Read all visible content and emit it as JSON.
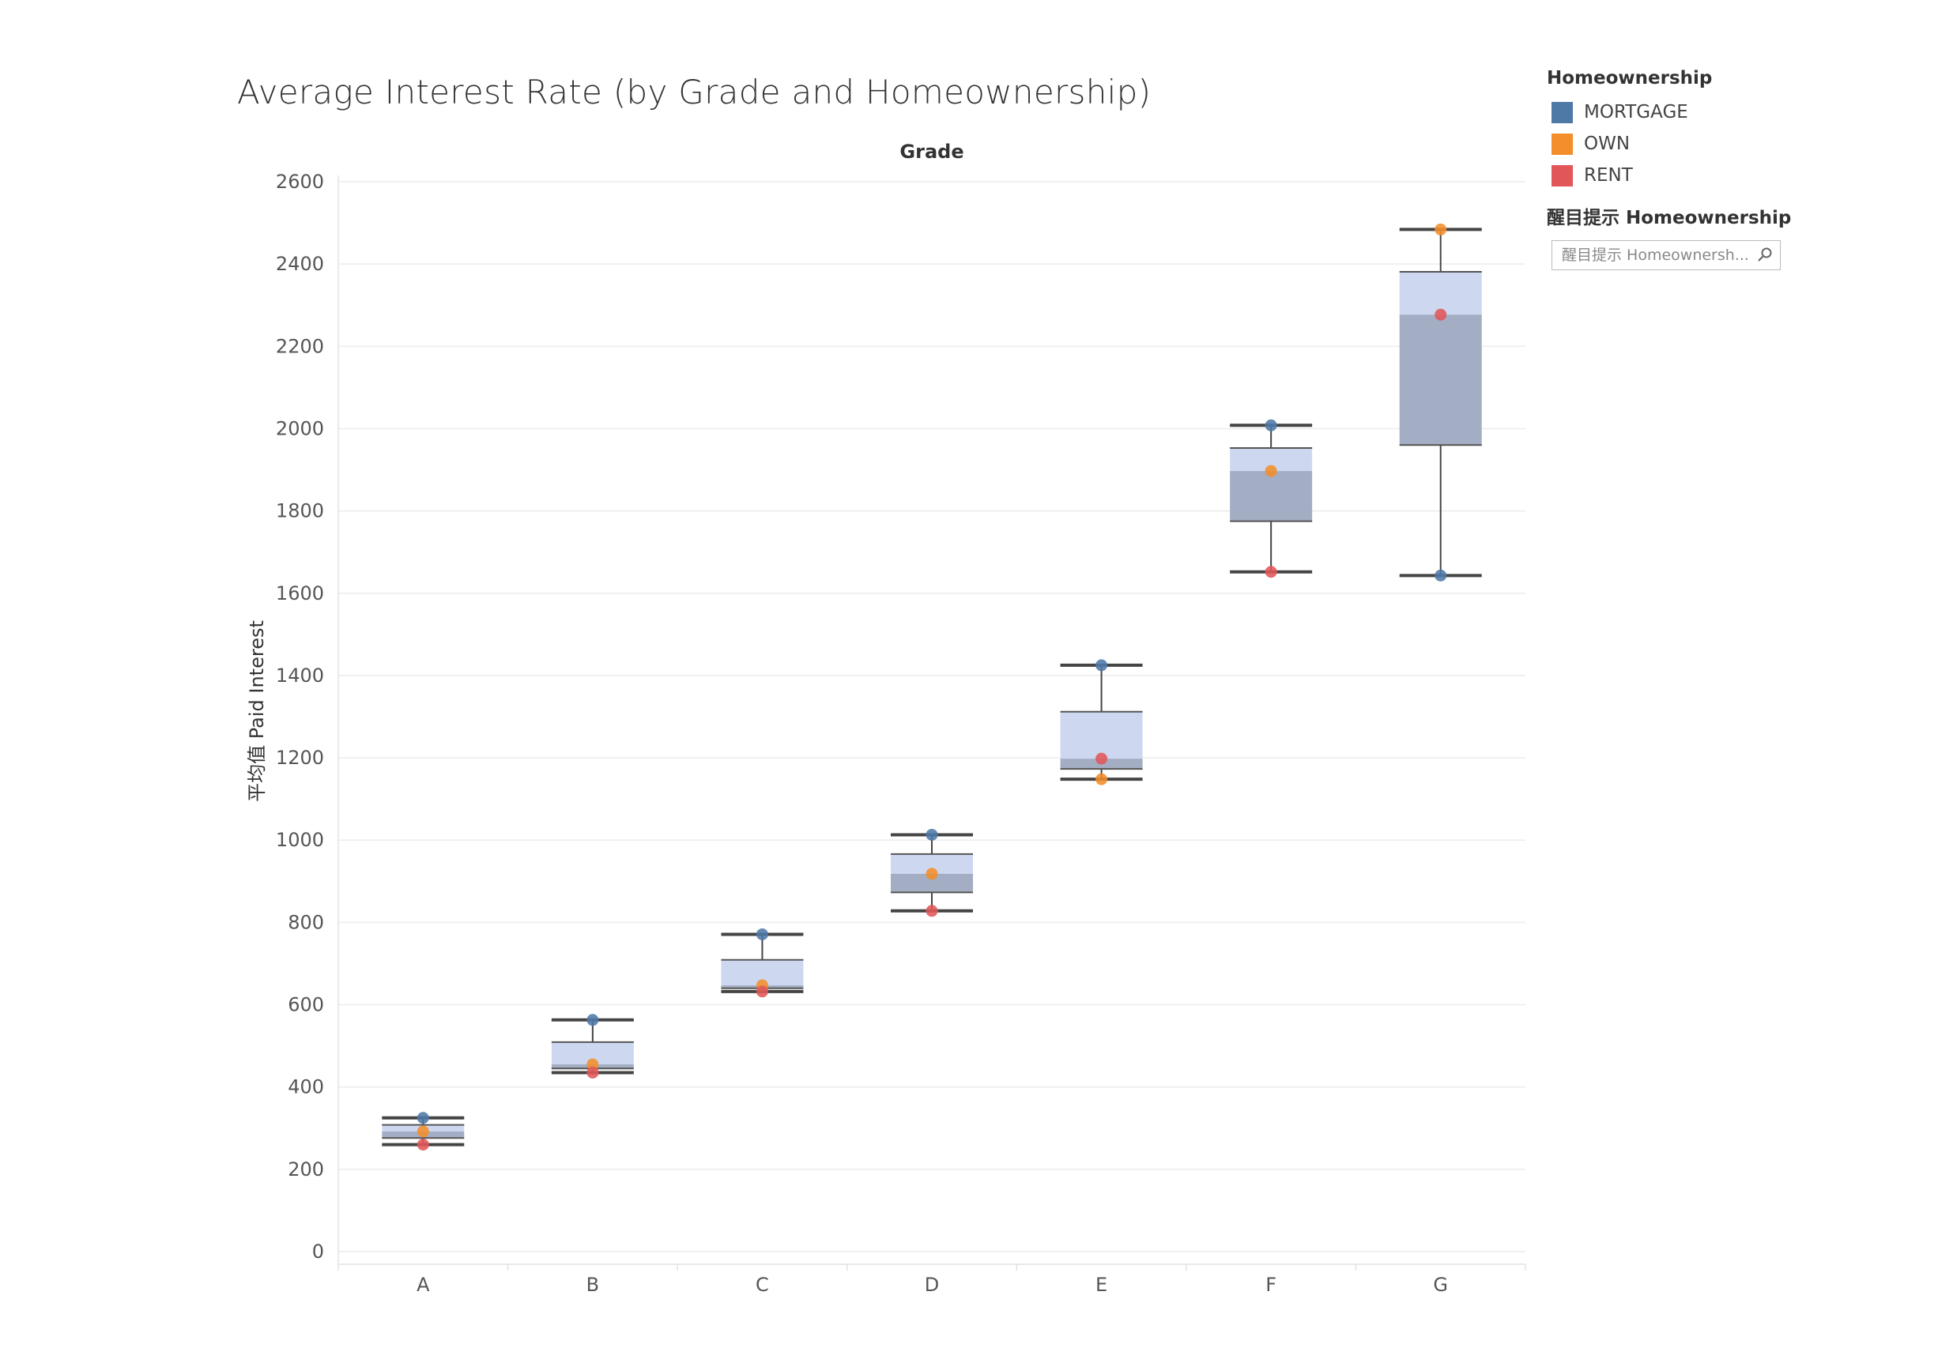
{
  "chart_data": {
    "type": "box",
    "title": "Average Interest Rate (by Grade and Homeownership)",
    "column_header": "Grade",
    "ylabel": "平均值 Paid Interest",
    "ylim": [
      0,
      2600
    ],
    "yticks": [
      0,
      200,
      400,
      600,
      800,
      1000,
      1200,
      1400,
      1600,
      1800,
      2000,
      2200,
      2400,
      2600
    ],
    "categories": [
      "A",
      "B",
      "C",
      "D",
      "E",
      "F",
      "G"
    ],
    "grid": true,
    "legend_position": "top-right",
    "series": [
      {
        "name": "MORTGAGE",
        "color": "#4e79a7",
        "values": [
          325,
          563,
          771,
          1013,
          1425,
          2008,
          1643
        ]
      },
      {
        "name": "OWN",
        "color": "#f28e2b",
        "values": [
          292,
          455,
          647,
          918,
          1148,
          1897,
          2484
        ]
      },
      {
        "name": "RENT",
        "color": "#e15759",
        "values": [
          260,
          435,
          632,
          828,
          1198,
          1652,
          2277
        ]
      }
    ],
    "boxes": [
      {
        "category": "A",
        "min": 260,
        "q1": 276,
        "median": 292,
        "q3": 308,
        "max": 325
      },
      {
        "category": "B",
        "min": 435,
        "q1": 445,
        "median": 455,
        "q3": 509,
        "max": 563
      },
      {
        "category": "C",
        "min": 632,
        "q1": 640,
        "median": 647,
        "q3": 709,
        "max": 771
      },
      {
        "category": "D",
        "min": 828,
        "q1": 873,
        "median": 918,
        "q3": 966,
        "max": 1013
      },
      {
        "category": "E",
        "min": 1148,
        "q1": 1173,
        "median": 1198,
        "q3": 1312,
        "max": 1425
      },
      {
        "category": "F",
        "min": 1652,
        "q1": 1775,
        "median": 1897,
        "q3": 1953,
        "max": 2008
      },
      {
        "category": "G",
        "min": 1643,
        "q1": 1960,
        "median": 2277,
        "q3": 2381,
        "max": 2484
      }
    ]
  },
  "legend": {
    "title": "Homeownership",
    "items": [
      {
        "label": "MORTGAGE",
        "color": "#4e79a7"
      },
      {
        "label": "OWN",
        "color": "#f28e2b"
      },
      {
        "label": "RENT",
        "color": "#e15759"
      }
    ]
  },
  "highlighter": {
    "title": "醒目提示 Homeownership",
    "placeholder": "醒目提示 Homeownersh..."
  }
}
